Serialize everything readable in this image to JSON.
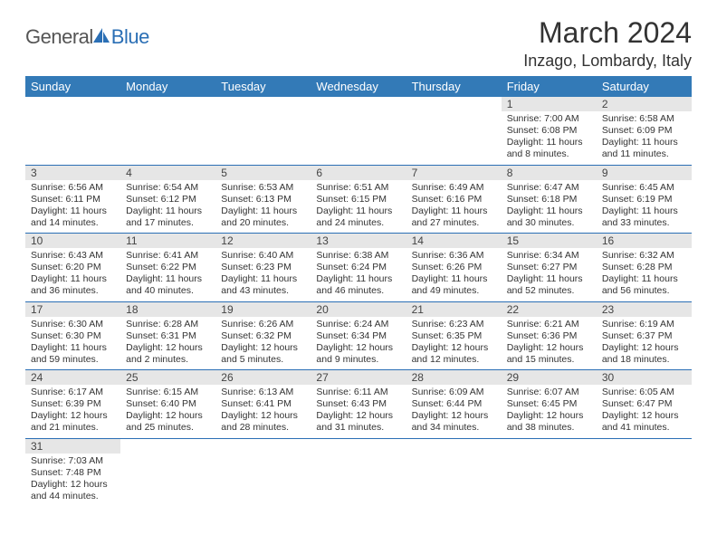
{
  "brand": {
    "general": "General",
    "blue": "Blue"
  },
  "title": "March 2024",
  "location": "Inzago, Lombardy, Italy",
  "colors": {
    "header_bg": "#337ab7",
    "header_text": "#ffffff",
    "daynum_bg": "#e6e6e6",
    "border": "#2b6fb5",
    "brand_blue": "#2b6fb5",
    "text": "#333333"
  },
  "days_of_week": [
    "Sunday",
    "Monday",
    "Tuesday",
    "Wednesday",
    "Thursday",
    "Friday",
    "Saturday"
  ],
  "weeks": [
    [
      null,
      null,
      null,
      null,
      null,
      {
        "n": "1",
        "sr": "Sunrise: 7:00 AM",
        "ss": "Sunset: 6:08 PM",
        "dl": "Daylight: 11 hours and 8 minutes."
      },
      {
        "n": "2",
        "sr": "Sunrise: 6:58 AM",
        "ss": "Sunset: 6:09 PM",
        "dl": "Daylight: 11 hours and 11 minutes."
      }
    ],
    [
      {
        "n": "3",
        "sr": "Sunrise: 6:56 AM",
        "ss": "Sunset: 6:11 PM",
        "dl": "Daylight: 11 hours and 14 minutes."
      },
      {
        "n": "4",
        "sr": "Sunrise: 6:54 AM",
        "ss": "Sunset: 6:12 PM",
        "dl": "Daylight: 11 hours and 17 minutes."
      },
      {
        "n": "5",
        "sr": "Sunrise: 6:53 AM",
        "ss": "Sunset: 6:13 PM",
        "dl": "Daylight: 11 hours and 20 minutes."
      },
      {
        "n": "6",
        "sr": "Sunrise: 6:51 AM",
        "ss": "Sunset: 6:15 PM",
        "dl": "Daylight: 11 hours and 24 minutes."
      },
      {
        "n": "7",
        "sr": "Sunrise: 6:49 AM",
        "ss": "Sunset: 6:16 PM",
        "dl": "Daylight: 11 hours and 27 minutes."
      },
      {
        "n": "8",
        "sr": "Sunrise: 6:47 AM",
        "ss": "Sunset: 6:18 PM",
        "dl": "Daylight: 11 hours and 30 minutes."
      },
      {
        "n": "9",
        "sr": "Sunrise: 6:45 AM",
        "ss": "Sunset: 6:19 PM",
        "dl": "Daylight: 11 hours and 33 minutes."
      }
    ],
    [
      {
        "n": "10",
        "sr": "Sunrise: 6:43 AM",
        "ss": "Sunset: 6:20 PM",
        "dl": "Daylight: 11 hours and 36 minutes."
      },
      {
        "n": "11",
        "sr": "Sunrise: 6:41 AM",
        "ss": "Sunset: 6:22 PM",
        "dl": "Daylight: 11 hours and 40 minutes."
      },
      {
        "n": "12",
        "sr": "Sunrise: 6:40 AM",
        "ss": "Sunset: 6:23 PM",
        "dl": "Daylight: 11 hours and 43 minutes."
      },
      {
        "n": "13",
        "sr": "Sunrise: 6:38 AM",
        "ss": "Sunset: 6:24 PM",
        "dl": "Daylight: 11 hours and 46 minutes."
      },
      {
        "n": "14",
        "sr": "Sunrise: 6:36 AM",
        "ss": "Sunset: 6:26 PM",
        "dl": "Daylight: 11 hours and 49 minutes."
      },
      {
        "n": "15",
        "sr": "Sunrise: 6:34 AM",
        "ss": "Sunset: 6:27 PM",
        "dl": "Daylight: 11 hours and 52 minutes."
      },
      {
        "n": "16",
        "sr": "Sunrise: 6:32 AM",
        "ss": "Sunset: 6:28 PM",
        "dl": "Daylight: 11 hours and 56 minutes."
      }
    ],
    [
      {
        "n": "17",
        "sr": "Sunrise: 6:30 AM",
        "ss": "Sunset: 6:30 PM",
        "dl": "Daylight: 11 hours and 59 minutes."
      },
      {
        "n": "18",
        "sr": "Sunrise: 6:28 AM",
        "ss": "Sunset: 6:31 PM",
        "dl": "Daylight: 12 hours and 2 minutes."
      },
      {
        "n": "19",
        "sr": "Sunrise: 6:26 AM",
        "ss": "Sunset: 6:32 PM",
        "dl": "Daylight: 12 hours and 5 minutes."
      },
      {
        "n": "20",
        "sr": "Sunrise: 6:24 AM",
        "ss": "Sunset: 6:34 PM",
        "dl": "Daylight: 12 hours and 9 minutes."
      },
      {
        "n": "21",
        "sr": "Sunrise: 6:23 AM",
        "ss": "Sunset: 6:35 PM",
        "dl": "Daylight: 12 hours and 12 minutes."
      },
      {
        "n": "22",
        "sr": "Sunrise: 6:21 AM",
        "ss": "Sunset: 6:36 PM",
        "dl": "Daylight: 12 hours and 15 minutes."
      },
      {
        "n": "23",
        "sr": "Sunrise: 6:19 AM",
        "ss": "Sunset: 6:37 PM",
        "dl": "Daylight: 12 hours and 18 minutes."
      }
    ],
    [
      {
        "n": "24",
        "sr": "Sunrise: 6:17 AM",
        "ss": "Sunset: 6:39 PM",
        "dl": "Daylight: 12 hours and 21 minutes."
      },
      {
        "n": "25",
        "sr": "Sunrise: 6:15 AM",
        "ss": "Sunset: 6:40 PM",
        "dl": "Daylight: 12 hours and 25 minutes."
      },
      {
        "n": "26",
        "sr": "Sunrise: 6:13 AM",
        "ss": "Sunset: 6:41 PM",
        "dl": "Daylight: 12 hours and 28 minutes."
      },
      {
        "n": "27",
        "sr": "Sunrise: 6:11 AM",
        "ss": "Sunset: 6:43 PM",
        "dl": "Daylight: 12 hours and 31 minutes."
      },
      {
        "n": "28",
        "sr": "Sunrise: 6:09 AM",
        "ss": "Sunset: 6:44 PM",
        "dl": "Daylight: 12 hours and 34 minutes."
      },
      {
        "n": "29",
        "sr": "Sunrise: 6:07 AM",
        "ss": "Sunset: 6:45 PM",
        "dl": "Daylight: 12 hours and 38 minutes."
      },
      {
        "n": "30",
        "sr": "Sunrise: 6:05 AM",
        "ss": "Sunset: 6:47 PM",
        "dl": "Daylight: 12 hours and 41 minutes."
      }
    ],
    [
      {
        "n": "31",
        "sr": "Sunrise: 7:03 AM",
        "ss": "Sunset: 7:48 PM",
        "dl": "Daylight: 12 hours and 44 minutes."
      },
      null,
      null,
      null,
      null,
      null,
      null
    ]
  ]
}
